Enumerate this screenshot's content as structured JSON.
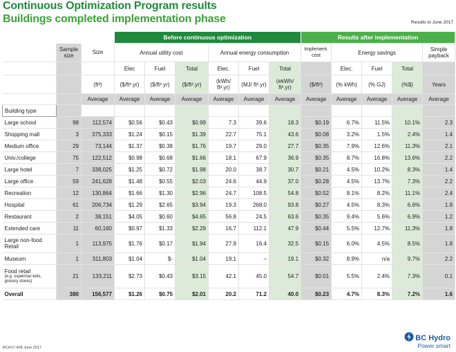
{
  "title": "Continuous Optimization Program results",
  "subtitle": "Buildings completed implementation phase",
  "as_of": "Results to June 2017",
  "group_headers": {
    "before": "Before continuous optimization",
    "after": "Results after implementation"
  },
  "subgroup_headers": {
    "sample_size": "Sample size",
    "size": "Size",
    "utility_cost": "Annual utility cost",
    "energy_consumption": "Annual energy consumption",
    "implement_cost": "Implement. cost",
    "energy_savings": "Energy savings",
    "simple_payback": "Simple payback"
  },
  "col_types": [
    "Elec",
    "Fuel",
    "Total",
    "Elec.",
    "Fuel",
    "Total",
    "Elec.",
    "Fuel",
    "Total"
  ],
  "units": [
    "(ft²)",
    "($/ft².yr)",
    "($/ft².yr)",
    "($/ft².yr)",
    "(kWh/ ft².yr)",
    "(MJ/ ft².yr)",
    "(ekWh/ ft².yr)",
    "($/ft²)",
    "(% kWh)",
    "(% GJ)",
    "(%$)",
    "Years"
  ],
  "average_label": "Average",
  "building_type_label": "Building type",
  "rows": [
    {
      "type": "Large school",
      "n": "98",
      "size": "112,574",
      "ce": "$0.56",
      "cf": "$0.43",
      "ct": "$0.99",
      "ee": "7.3",
      "ef": "39.6",
      "et": "18.3",
      "ic": "$0.19",
      "se": "6.7%",
      "sf": "11.5%",
      "st": "10.1%",
      "pb": "2.3"
    },
    {
      "type": "Shopping mall",
      "n": "3",
      "size": "375,333",
      "ce": "$1.24",
      "cf": "$0.15",
      "ct": "$1.39",
      "ee": "22.7",
      "ef": "75.1",
      "et": "43.6",
      "ic": "$0.08",
      "se": "3.2%",
      "sf": "1.5%",
      "st": "2.4%",
      "pb": "1.4"
    },
    {
      "type": "Medium office",
      "n": "29",
      "size": "73,144",
      "ce": "$1.37",
      "cf": "$0.38",
      "ct": "$1.76",
      "ee": "19.7",
      "ef": "29.0",
      "et": "27.7",
      "ic": "$0.35",
      "se": "7.9%",
      "sf": "12.6%",
      "st": "11.3%",
      "pb": "2.1"
    },
    {
      "type": "Univ./college",
      "n": "75",
      "size": "122,512",
      "ce": "$0.98",
      "cf": "$0.68",
      "ct": "$1.66",
      "ee": "18.1",
      "ef": "67.9",
      "et": "36.9",
      "ic": "$0.35",
      "se": "8.7%",
      "sf": "16.8%",
      "st": "13.6%",
      "pb": "2.2"
    },
    {
      "type": "Large hotel",
      "n": "7",
      "size": "338,025",
      "ce": "$1.25",
      "cf": "$0.72",
      "ct": "$1.98",
      "ee": "20.0",
      "ef": "38.7",
      "et": "30.7",
      "ic": "$0.21",
      "se": "4.5%",
      "sf": "10.2%",
      "st": "8.3%",
      "pb": "1.4"
    },
    {
      "type": "Large office",
      "n": "59",
      "size": "241,628",
      "ce": "$1.48",
      "cf": "$0.55",
      "ct": "$2.03",
      "ee": "24.6",
      "ef": "44.9",
      "et": "37.0",
      "ic": "$0.28",
      "se": "4.5%",
      "sf": "13.7%",
      "st": "7.3%",
      "pb": "2.2"
    },
    {
      "type": "Recreation",
      "n": "12",
      "size": "130,864",
      "ce": "$1.66",
      "cf": "$1.30",
      "ct": "$2.96",
      "ee": "24.7",
      "ef": "108.5",
      "et": "54.8",
      "ic": "$0.52",
      "se": "8.1%",
      "sf": "8.2%",
      "st": "11.1%",
      "pb": "2.4"
    },
    {
      "type": "Hospital",
      "n": "61",
      "size": "206,734",
      "ce": "$1.29",
      "cf": "$2.65",
      "ct": "$3.94",
      "ee": "19.3",
      "ef": "268.0",
      "et": "93.8",
      "ic": "$0.27",
      "se": "4.5%",
      "sf": "8.3%",
      "st": "6.6%",
      "pb": "1.8"
    },
    {
      "type": "Restaurant",
      "n": "2",
      "size": "38,151",
      "ce": "$4.05",
      "cf": "$0.60",
      "ct": "$4.65",
      "ee": "56.8",
      "ef": "24.5",
      "et": "63.6",
      "ic": "$0.35",
      "se": "9.4%",
      "sf": "5.6%",
      "st": "6.9%",
      "pb": "1.2"
    },
    {
      "type": "Extended care",
      "n": "11",
      "size": "60,160",
      "ce": "$0.97",
      "cf": "$1.33",
      "ct": "$2.29",
      "ee": "16.7",
      "ef": "112.1",
      "et": "47.9",
      "ic": "$0.44",
      "se": "5.5%",
      "sf": "12.7%",
      "st": "11.3%",
      "pb": "1.8"
    },
    {
      "type": "Large non-food Retail",
      "n": "1",
      "size": "113,975",
      "ce": "$1.76",
      "cf": "$0.17",
      "ct": "$1.94",
      "ee": "27.9",
      "ef": "16.4",
      "et": "32.5",
      "ic": "$0.15",
      "se": "6.0%",
      "sf": "4.5%",
      "st": "8.5%",
      "pb": "1.8"
    },
    {
      "type": "Museum",
      "n": "1",
      "size": "311,803",
      "ce": "$1.04",
      "cf": "$-",
      "ct": "$1.04",
      "ee": "19.1",
      "ef": "–",
      "et": "19.1",
      "ic": "$0.32",
      "se": "8.9%",
      "sf": "n/a",
      "st": "9.7%",
      "pb": "2.2"
    },
    {
      "type": "Food retail",
      "type_note": "(e.g. supermar-kets, grocery stores)",
      "n": "21",
      "size": "133,211",
      "ce": "$2.73",
      "cf": "$0.43",
      "ct": "$3.15",
      "ee": "42.1",
      "ef": "45.0",
      "et": "54.7",
      "ic": "$0.01",
      "se": "5.5%",
      "sf": "2.4%",
      "st": "7.3%",
      "pb": "0.1"
    }
  ],
  "overall": {
    "type": "Overall",
    "n": "380",
    "size": "156,577",
    "ce": "$1.26",
    "cf": "$0.75",
    "ct": "$2.01",
    "ee": "20.2",
    "ef": "71.2",
    "et": "40.0",
    "ic": "$0.23",
    "se": "4.7%",
    "sf": "8.3%",
    "st": "7.2%",
    "pb": "1.6"
  },
  "footer_code": "BCH17-406 June 2017",
  "logo": {
    "name": "BC Hydro",
    "tagline": "Power smart",
    "color": "#1a5ca6"
  },
  "colors": {
    "dark_green": "#1f8a3c",
    "light_green": "#4bb04a",
    "pale_green": "#dcebd8",
    "gray": "#d5d5d5"
  }
}
